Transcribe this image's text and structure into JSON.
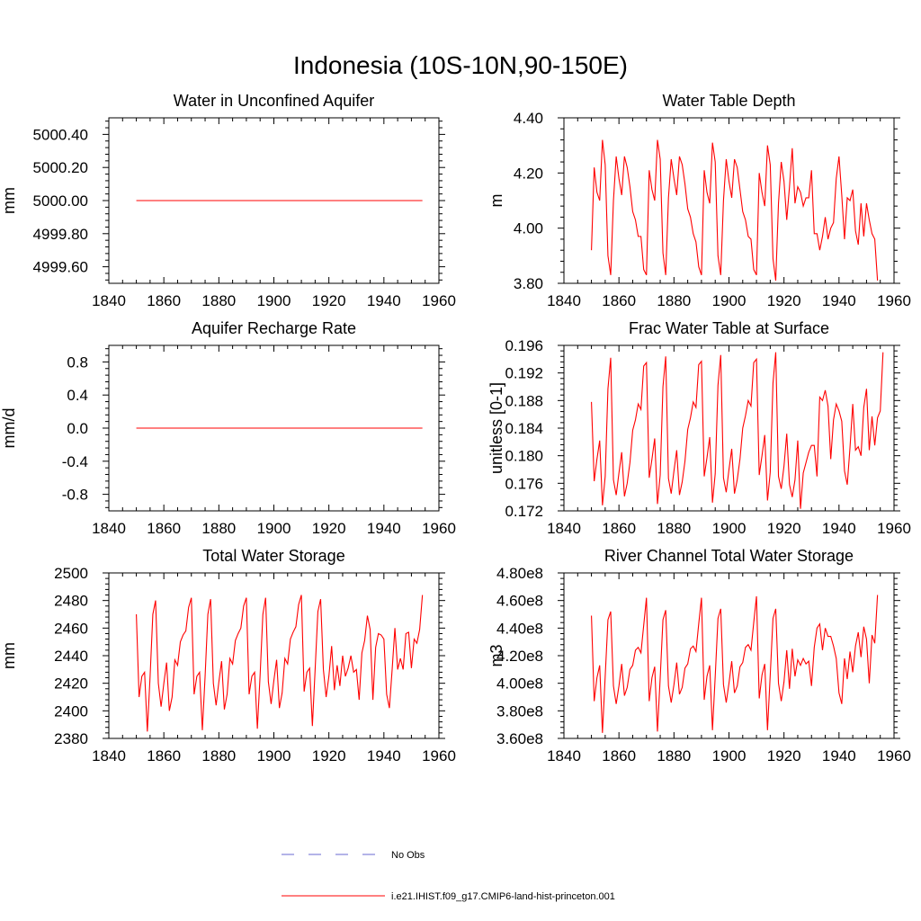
{
  "title": "Indonesia (10S-10N,90-150E)",
  "legend": [
    {
      "label": "No Obs",
      "color": "#6a6ad0",
      "style": "dashed"
    },
    {
      "label": "i.e21.IHIST.f09_g17.CMIP6-land-hist-princeton.001",
      "color": "#ff0000",
      "style": "solid"
    }
  ],
  "chart_data": [
    {
      "type": "line",
      "title": "Water in Unconfined Aquifer",
      "ylabel": "mm",
      "xlim": [
        1840,
        1960
      ],
      "ylim": [
        4999.5,
        5000.5
      ],
      "xticks": [
        1840,
        1860,
        1880,
        1900,
        1920,
        1940,
        1960
      ],
      "xtick_labels": [
        "1840",
        "1860",
        "1880",
        "1900",
        "1920",
        "1940",
        "1960"
      ],
      "yticks": [
        4999.6,
        4999.8,
        5000.0,
        5000.2,
        5000.4
      ],
      "ytick_labels": [
        "4999.60",
        "4999.80",
        "5000.00",
        "5000.20",
        "5000.40"
      ],
      "x_start": 1850,
      "series": [
        {
          "color": "#ff0000",
          "values": [
            5000,
            5000,
            5000,
            5000,
            5000,
            5000,
            5000,
            5000,
            5000,
            5000,
            5000,
            5000,
            5000,
            5000,
            5000,
            5000,
            5000,
            5000,
            5000,
            5000,
            5000,
            5000,
            5000,
            5000,
            5000,
            5000,
            5000,
            5000,
            5000,
            5000,
            5000,
            5000,
            5000,
            5000,
            5000,
            5000,
            5000,
            5000,
            5000,
            5000,
            5000,
            5000,
            5000,
            5000,
            5000,
            5000,
            5000,
            5000,
            5000,
            5000,
            5000,
            5000,
            5000,
            5000,
            5000,
            5000,
            5000,
            5000,
            5000,
            5000,
            5000,
            5000,
            5000,
            5000,
            5000,
            5000,
            5000,
            5000,
            5000,
            5000,
            5000,
            5000,
            5000,
            5000,
            5000,
            5000,
            5000,
            5000,
            5000,
            5000,
            5000,
            5000,
            5000,
            5000,
            5000,
            5000,
            5000,
            5000,
            5000,
            5000,
            5000,
            5000,
            5000,
            5000,
            5000,
            5000,
            5000,
            5000,
            5000,
            5000,
            5000,
            5000,
            5000,
            5000,
            5000
          ]
        }
      ]
    },
    {
      "type": "line",
      "title": "Water Table Depth",
      "ylabel": "m",
      "xlim": [
        1840,
        1960
      ],
      "ylim": [
        3.8,
        4.4
      ],
      "xticks": [
        1840,
        1860,
        1880,
        1900,
        1920,
        1940,
        1960
      ],
      "xtick_labels": [
        "1840",
        "1860",
        "1880",
        "1900",
        "1920",
        "1940",
        "1960"
      ],
      "yticks": [
        3.8,
        4.0,
        4.2,
        4.4
      ],
      "ytick_labels": [
        "3.80",
        "4.00",
        "4.20",
        "4.40"
      ],
      "x_start": 1850,
      "series": [
        {
          "color": "#ff0000",
          "values": [
            3.92,
            4.22,
            4.13,
            4.1,
            4.32,
            4.23,
            3.9,
            3.83,
            4.1,
            4.26,
            4.18,
            4.12,
            4.26,
            4.22,
            4.15,
            4.06,
            4.03,
            3.97,
            3.97,
            3.85,
            3.83,
            4.21,
            4.14,
            4.1,
            4.32,
            4.25,
            3.91,
            3.83,
            4.11,
            4.25,
            4.18,
            4.12,
            4.26,
            4.23,
            4.16,
            4.07,
            4.04,
            3.98,
            3.95,
            3.86,
            3.83,
            4.21,
            4.13,
            4.09,
            4.31,
            4.24,
            3.9,
            3.83,
            4.1,
            4.25,
            4.17,
            4.11,
            4.25,
            4.22,
            4.14,
            4.06,
            4.03,
            3.97,
            3.96,
            3.85,
            3.83,
            4.2,
            4.13,
            4.08,
            4.3,
            4.23,
            3.89,
            3.81,
            4.09,
            4.24,
            4.17,
            4.03,
            4.15,
            4.29,
            4.09,
            4.15,
            4.13,
            4.08,
            4.11,
            4.11,
            4.21,
            3.98,
            3.98,
            3.92,
            3.97,
            4.04,
            3.96,
            4.0,
            4.02,
            4.18,
            4.26,
            4.12,
            3.96,
            4.11,
            4.1,
            4.14,
            3.99,
            3.94,
            4.09,
            3.97,
            4.09,
            4.03,
            3.98,
            3.96,
            3.81
          ]
        }
      ]
    },
    {
      "type": "line",
      "title": "Aquifer Recharge Rate",
      "ylabel": "mm/d",
      "xlim": [
        1840,
        1960
      ],
      "ylim": [
        -1.0,
        1.0
      ],
      "xticks": [
        1840,
        1860,
        1880,
        1900,
        1920,
        1940,
        1960
      ],
      "xtick_labels": [
        "1840",
        "1860",
        "1880",
        "1900",
        "1920",
        "1940",
        "1960"
      ],
      "yticks": [
        -0.8,
        -0.4,
        0.0,
        0.4,
        0.8
      ],
      "ytick_labels": [
        "-0.8",
        "-0.4",
        "0.0",
        "0.4",
        "0.8"
      ],
      "x_start": 1850,
      "series": [
        {
          "color": "#ff0000",
          "values": [
            0,
            0,
            0,
            0,
            0,
            0,
            0,
            0,
            0,
            0,
            0,
            0,
            0,
            0,
            0,
            0,
            0,
            0,
            0,
            0,
            0,
            0,
            0,
            0,
            0,
            0,
            0,
            0,
            0,
            0,
            0,
            0,
            0,
            0,
            0,
            0,
            0,
            0,
            0,
            0,
            0,
            0,
            0,
            0,
            0,
            0,
            0,
            0,
            0,
            0,
            0,
            0,
            0,
            0,
            0,
            0,
            0,
            0,
            0,
            0,
            0,
            0,
            0,
            0,
            0,
            0,
            0,
            0,
            0,
            0,
            0,
            0,
            0,
            0,
            0,
            0,
            0,
            0,
            0,
            0,
            0,
            0,
            0,
            0,
            0,
            0,
            0,
            0,
            0,
            0,
            0,
            0,
            0,
            0,
            0,
            0,
            0,
            0,
            0,
            0,
            0,
            0,
            0,
            0,
            0
          ]
        }
      ]
    },
    {
      "type": "line",
      "title": "Frac Water Table at Surface",
      "ylabel": "unitless [0-1]",
      "xlim": [
        1840,
        1960
      ],
      "ylim": [
        0.172,
        0.196
      ],
      "xticks": [
        1840,
        1860,
        1880,
        1900,
        1920,
        1940,
        1960
      ],
      "xtick_labels": [
        "1840",
        "1860",
        "1880",
        "1900",
        "1920",
        "1940",
        "1960"
      ],
      "yticks": [
        0.172,
        0.176,
        0.18,
        0.184,
        0.188,
        0.192,
        0.196
      ],
      "ytick_labels": [
        "0.172",
        "0.176",
        "0.180",
        "0.184",
        "0.188",
        "0.192",
        "0.196"
      ],
      "x_start": 1850,
      "series": [
        {
          "color": "#ff0000",
          "values": [
            0.1878,
            0.1763,
            0.1795,
            0.1822,
            0.1728,
            0.177,
            0.1897,
            0.1942,
            0.1765,
            0.1743,
            0.1775,
            0.1805,
            0.1741,
            0.176,
            0.179,
            0.1837,
            0.1852,
            0.1875,
            0.1867,
            0.193,
            0.1935,
            0.1768,
            0.1795,
            0.1825,
            0.173,
            0.1772,
            0.19,
            0.1944,
            0.1767,
            0.1745,
            0.1778,
            0.1808,
            0.1743,
            0.1762,
            0.1792,
            0.1838,
            0.1855,
            0.1878,
            0.187,
            0.1932,
            0.1937,
            0.177,
            0.1797,
            0.1827,
            0.1732,
            0.1774,
            0.1902,
            0.1946,
            0.1768,
            0.1747,
            0.178,
            0.181,
            0.1745,
            0.1765,
            0.1795,
            0.184,
            0.1858,
            0.188,
            0.1872,
            0.1935,
            0.194,
            0.1772,
            0.18,
            0.183,
            0.1735,
            0.1776,
            0.1905,
            0.195,
            0.177,
            0.1752,
            0.1785,
            0.1832,
            0.1758,
            0.174,
            0.1765,
            0.1822,
            0.1723,
            0.1775,
            0.179,
            0.1805,
            0.1815,
            0.1815,
            0.177,
            0.1885,
            0.188,
            0.1895,
            0.1872,
            0.1795,
            0.1852,
            0.1875,
            0.1865,
            0.185,
            0.1778,
            0.1758,
            0.1812,
            0.1875,
            0.1808,
            0.1813,
            0.18,
            0.187,
            0.1897,
            0.1808,
            0.1857,
            0.1815,
            0.1855,
            0.1865,
            0.195
          ]
        }
      ]
    },
    {
      "type": "line",
      "title": "Total Water Storage",
      "ylabel": "mm",
      "xlim": [
        1840,
        1960
      ],
      "ylim": [
        2380,
        2500
      ],
      "xticks": [
        1840,
        1860,
        1880,
        1900,
        1920,
        1940,
        1960
      ],
      "xtick_labels": [
        "1840",
        "1860",
        "1880",
        "1900",
        "1920",
        "1940",
        "1960"
      ],
      "yticks": [
        2380,
        2400,
        2420,
        2440,
        2460,
        2480,
        2500
      ],
      "ytick_labels": [
        "2380",
        "2400",
        "2420",
        "2440",
        "2460",
        "2480",
        "2500"
      ],
      "x_start": 1850,
      "series": [
        {
          "color": "#ff0000",
          "values": [
            2470,
            2410,
            2425,
            2428,
            2385,
            2425,
            2470,
            2480,
            2420,
            2403,
            2420,
            2435,
            2400,
            2410,
            2437,
            2433,
            2450,
            2455,
            2458,
            2475,
            2482,
            2412,
            2425,
            2428,
            2386,
            2425,
            2470,
            2481,
            2420,
            2404,
            2421,
            2436,
            2401,
            2412,
            2438,
            2434,
            2451,
            2456,
            2460,
            2476,
            2482,
            2412,
            2425,
            2428,
            2387,
            2426,
            2470,
            2482,
            2421,
            2405,
            2422,
            2437,
            2402,
            2413,
            2438,
            2434,
            2452,
            2457,
            2461,
            2477,
            2484,
            2414,
            2428,
            2431,
            2389,
            2430,
            2472,
            2481,
            2430,
            2410,
            2425,
            2447,
            2415,
            2433,
            2418,
            2440,
            2425,
            2431,
            2440,
            2428,
            2430,
            2408,
            2442,
            2451,
            2469,
            2459,
            2408,
            2446,
            2456,
            2455,
            2452,
            2412,
            2402,
            2430,
            2460,
            2430,
            2438,
            2430,
            2456,
            2457,
            2431,
            2452,
            2449,
            2459,
            2484
          ]
        }
      ]
    },
    {
      "type": "line",
      "title": "River Channel Total Water Storage",
      "ylabel": "m3",
      "xlim": [
        1840,
        1960
      ],
      "ylim": [
        360000000,
        480000000
      ],
      "xticks": [
        1840,
        1860,
        1880,
        1900,
        1920,
        1940,
        1960
      ],
      "xtick_labels": [
        "1840",
        "1860",
        "1880",
        "1900",
        "1920",
        "1940",
        "1960"
      ],
      "yticks": [
        360000000,
        380000000,
        400000000,
        420000000,
        440000000,
        460000000,
        480000000
      ],
      "ytick_labels": [
        "3.60e8",
        "3.80e8",
        "4.00e8",
        "4.20e8",
        "4.40e8",
        "4.60e8",
        "4.80e8"
      ],
      "x_start": 1850,
      "series": [
        {
          "color": "#ff0000",
          "values": [
            449000000,
            387000000,
            404000000,
            413000000,
            364000000,
            405000000,
            446000000,
            452000000,
            398000000,
            385000000,
            398000000,
            414000000,
            391000000,
            397000000,
            410000000,
            413000000,
            424000000,
            426000000,
            422000000,
            442000000,
            462000000,
            387000000,
            404000000,
            412000000,
            365000000,
            404000000,
            446000000,
            453000000,
            398000000,
            386000000,
            399000000,
            415000000,
            392000000,
            397000000,
            411000000,
            414000000,
            425000000,
            427000000,
            423000000,
            443000000,
            462000000,
            388000000,
            405000000,
            413000000,
            366000000,
            405000000,
            447000000,
            454000000,
            399000000,
            386000000,
            400000000,
            416000000,
            393000000,
            398000000,
            412000000,
            415000000,
            426000000,
            428000000,
            424000000,
            444000000,
            463000000,
            389000000,
            406000000,
            414000000,
            366000000,
            406000000,
            447000000,
            454000000,
            400000000,
            387000000,
            401000000,
            424000000,
            396000000,
            425000000,
            405000000,
            417000000,
            413000000,
            418000000,
            414000000,
            416000000,
            398000000,
            426000000,
            440000000,
            443000000,
            424000000,
            440000000,
            434000000,
            434000000,
            427000000,
            418000000,
            393000000,
            385000000,
            418000000,
            403000000,
            423000000,
            408000000,
            427000000,
            437000000,
            419000000,
            441000000,
            432000000,
            400000000,
            435000000,
            429000000,
            464000000
          ]
        }
      ]
    }
  ]
}
